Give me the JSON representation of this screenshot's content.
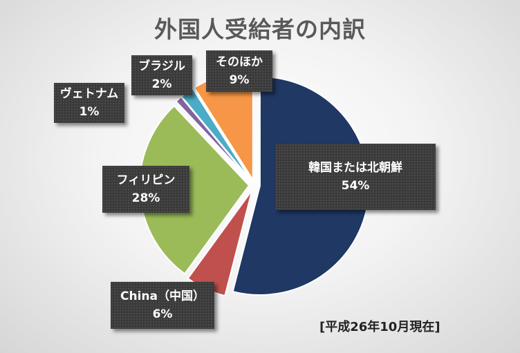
{
  "chart_data": {
    "type": "pie",
    "title": "外国人受給者の内訳",
    "note": "[平成26年10月現在]",
    "series": [
      {
        "name": "韓国または北朝鮮",
        "value": 54,
        "value_label": "54%",
        "color": "#1f3864"
      },
      {
        "name": "China（中国）",
        "value": 6,
        "value_label": "6%",
        "color": "#c0504d"
      },
      {
        "name": "フィリピン",
        "value": 28,
        "value_label": "28%",
        "color": "#9bbb59"
      },
      {
        "name": "ヴェトナム",
        "value": 1,
        "value_label": "1%",
        "color": "#8064a2"
      },
      {
        "name": "ブラジル",
        "value": 2,
        "value_label": "2%",
        "color": "#4bacc6"
      },
      {
        "name": "そのほか",
        "value": 9,
        "value_label": "9%",
        "color": "#f79646"
      }
    ]
  }
}
